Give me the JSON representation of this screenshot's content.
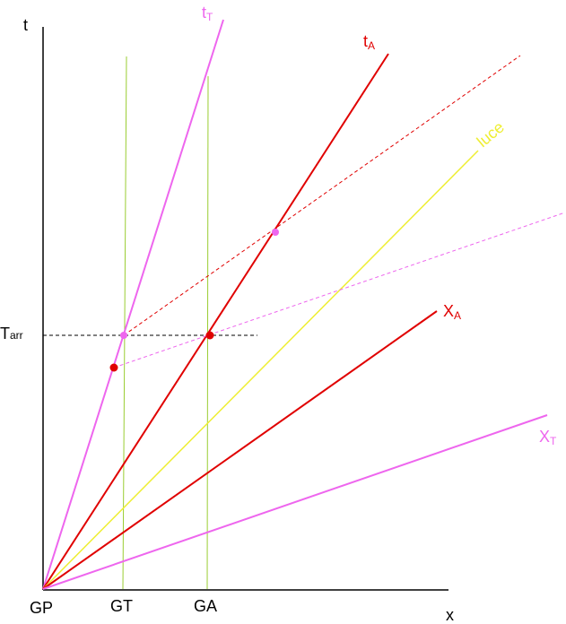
{
  "axes": {
    "vertical": "t",
    "horizontal": "x"
  },
  "lines": [
    {
      "base": "t",
      "sub": "T"
    },
    {
      "base": "t",
      "sub": "A"
    },
    {
      "label": "luce"
    },
    {
      "base": "X",
      "sub": "A"
    },
    {
      "base": "X",
      "sub": "T"
    }
  ],
  "time_marker": {
    "base": "T",
    "sub": "arr"
  },
  "points": [
    "GP",
    "GT",
    "GA"
  ]
}
